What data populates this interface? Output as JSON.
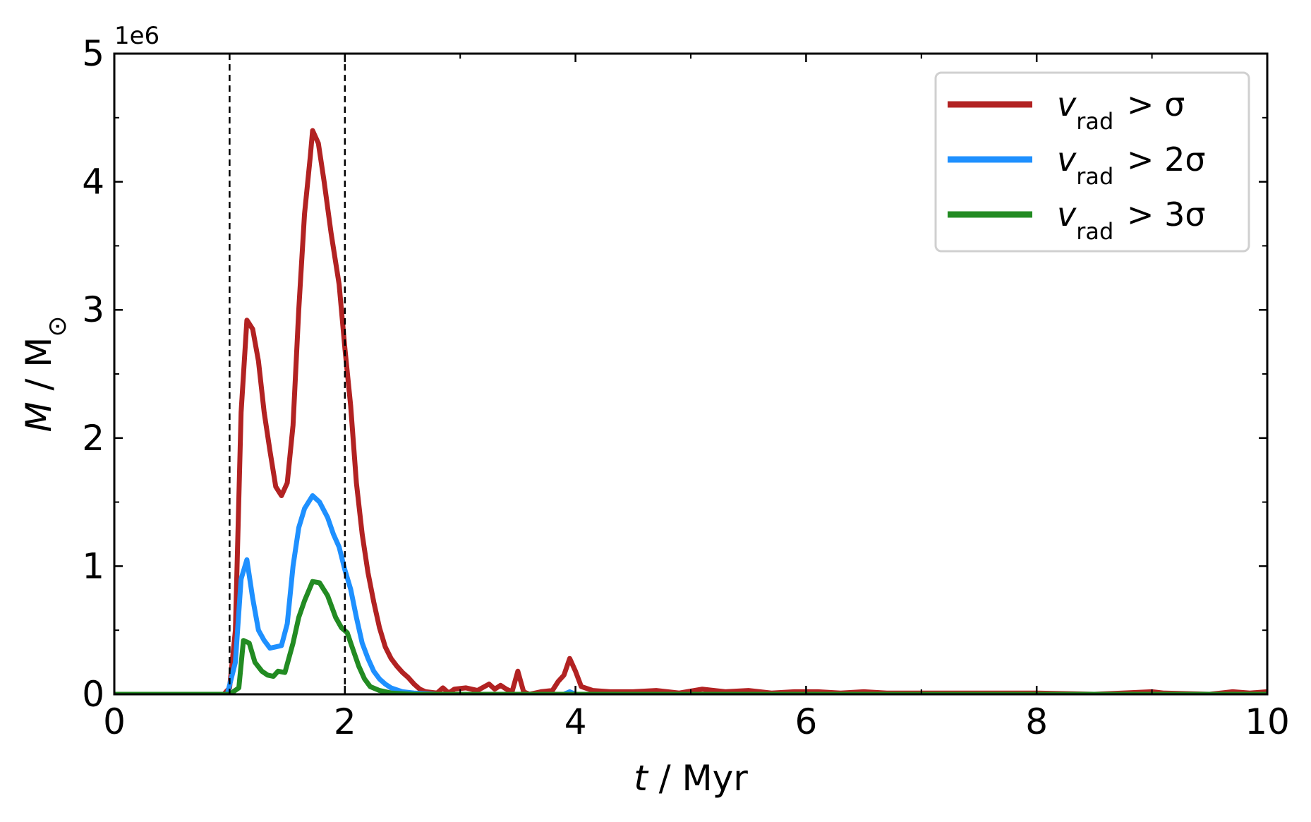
{
  "chart_data": {
    "type": "line",
    "xlabel": {
      "italic": "t",
      "rest": " / Myr"
    },
    "ylabel": {
      "italic": "M",
      "rest": " / M",
      "sub": "⊙"
    },
    "xlim": [
      0,
      10
    ],
    "ylim": [
      0,
      5
    ],
    "y_offset_text": "1e6",
    "x_ticks": [
      0,
      2,
      4,
      6,
      8,
      10
    ],
    "x_tick_labels": [
      "0",
      "2",
      "4",
      "6",
      "8",
      "10"
    ],
    "x_minor_ticks": [
      1,
      3,
      5,
      7,
      9
    ],
    "y_ticks": [
      0,
      1,
      2,
      3,
      4,
      5
    ],
    "y_tick_labels": [
      "0",
      "1",
      "2",
      "3",
      "4",
      "5"
    ],
    "y_minor_ticks": [
      0.5,
      1.5,
      2.5,
      3.5,
      4.5
    ],
    "vlines": [
      1.0,
      2.0
    ],
    "grid": false,
    "legend_position": "top-right",
    "series": [
      {
        "name": "v_rad > σ",
        "label_parts": {
          "v": "v",
          "sub": "rad",
          "rest": " > σ"
        },
        "color": "#b22222",
        "points": [
          [
            0,
            0
          ],
          [
            0.5,
            0
          ],
          [
            0.95,
            0
          ],
          [
            1.0,
            0.05
          ],
          [
            1.05,
            0.5
          ],
          [
            1.1,
            2.2
          ],
          [
            1.15,
            2.92
          ],
          [
            1.2,
            2.85
          ],
          [
            1.25,
            2.6
          ],
          [
            1.3,
            2.2
          ],
          [
            1.35,
            1.9
          ],
          [
            1.4,
            1.62
          ],
          [
            1.45,
            1.55
          ],
          [
            1.5,
            1.65
          ],
          [
            1.55,
            2.1
          ],
          [
            1.6,
            3.0
          ],
          [
            1.65,
            3.75
          ],
          [
            1.7,
            4.2
          ],
          [
            1.72,
            4.4
          ],
          [
            1.77,
            4.3
          ],
          [
            1.82,
            4.0
          ],
          [
            1.88,
            3.6
          ],
          [
            1.95,
            3.2
          ],
          [
            2.0,
            2.7
          ],
          [
            2.05,
            2.25
          ],
          [
            2.1,
            1.65
          ],
          [
            2.15,
            1.25
          ],
          [
            2.2,
            0.95
          ],
          [
            2.25,
            0.72
          ],
          [
            2.3,
            0.52
          ],
          [
            2.35,
            0.37
          ],
          [
            2.4,
            0.28
          ],
          [
            2.45,
            0.22
          ],
          [
            2.5,
            0.17
          ],
          [
            2.55,
            0.13
          ],
          [
            2.6,
            0.08
          ],
          [
            2.65,
            0.04
          ],
          [
            2.7,
            0.02
          ],
          [
            2.8,
            0.01
          ],
          [
            2.85,
            0.05
          ],
          [
            2.9,
            0.01
          ],
          [
            2.95,
            0.04
          ],
          [
            3.05,
            0.05
          ],
          [
            3.15,
            0.03
          ],
          [
            3.25,
            0.08
          ],
          [
            3.3,
            0.04
          ],
          [
            3.35,
            0.07
          ],
          [
            3.4,
            0.04
          ],
          [
            3.45,
            0.02
          ],
          [
            3.5,
            0.18
          ],
          [
            3.55,
            0.02
          ],
          [
            3.6,
            0.0
          ],
          [
            3.7,
            0.02
          ],
          [
            3.8,
            0.03
          ],
          [
            3.85,
            0.1
          ],
          [
            3.9,
            0.15
          ],
          [
            3.95,
            0.28
          ],
          [
            4.0,
            0.18
          ],
          [
            4.05,
            0.06
          ],
          [
            4.15,
            0.03
          ],
          [
            4.3,
            0.02
          ],
          [
            4.5,
            0.02
          ],
          [
            4.7,
            0.03
          ],
          [
            4.9,
            0.01
          ],
          [
            5.1,
            0.04
          ],
          [
            5.3,
            0.02
          ],
          [
            5.5,
            0.03
          ],
          [
            5.7,
            0.01
          ],
          [
            5.9,
            0.02
          ],
          [
            6.1,
            0.02
          ],
          [
            6.3,
            0.01
          ],
          [
            6.5,
            0.02
          ],
          [
            6.7,
            0.01
          ],
          [
            7.0,
            0.01
          ],
          [
            7.5,
            0.01
          ],
          [
            8.0,
            0.01
          ],
          [
            8.5,
            0.0
          ],
          [
            9.0,
            0.02
          ],
          [
            9.1,
            0.01
          ],
          [
            9.5,
            0.0
          ],
          [
            9.7,
            0.02
          ],
          [
            9.85,
            0.01
          ],
          [
            10.0,
            0.02
          ]
        ]
      },
      {
        "name": "v_rad > 2σ",
        "label_parts": {
          "v": "v",
          "sub": "rad",
          "rest": " > 2σ"
        },
        "color": "#1e90ff",
        "points": [
          [
            0,
            0
          ],
          [
            0.5,
            0
          ],
          [
            0.98,
            0
          ],
          [
            1.05,
            0.25
          ],
          [
            1.1,
            0.9
          ],
          [
            1.15,
            1.05
          ],
          [
            1.2,
            0.75
          ],
          [
            1.25,
            0.5
          ],
          [
            1.3,
            0.42
          ],
          [
            1.35,
            0.36
          ],
          [
            1.4,
            0.37
          ],
          [
            1.45,
            0.38
          ],
          [
            1.5,
            0.55
          ],
          [
            1.55,
            1.0
          ],
          [
            1.6,
            1.3
          ],
          [
            1.65,
            1.45
          ],
          [
            1.72,
            1.55
          ],
          [
            1.78,
            1.5
          ],
          [
            1.85,
            1.38
          ],
          [
            1.9,
            1.25
          ],
          [
            1.95,
            1.15
          ],
          [
            2.0,
            0.97
          ],
          [
            2.05,
            0.82
          ],
          [
            2.1,
            0.6
          ],
          [
            2.15,
            0.4
          ],
          [
            2.2,
            0.28
          ],
          [
            2.25,
            0.18
          ],
          [
            2.3,
            0.12
          ],
          [
            2.35,
            0.08
          ],
          [
            2.4,
            0.05
          ],
          [
            2.5,
            0.02
          ],
          [
            2.6,
            0.01
          ],
          [
            2.8,
            0
          ],
          [
            3.0,
            0
          ],
          [
            3.9,
            0
          ],
          [
            3.95,
            0.02
          ],
          [
            4.0,
            0
          ],
          [
            10,
            0
          ]
        ]
      },
      {
        "name": "v_rad > 3σ",
        "label_parts": {
          "v": "v",
          "sub": "rad",
          "rest": " > 3σ"
        },
        "color": "#228b22",
        "points": [
          [
            0,
            0
          ],
          [
            0.5,
            0
          ],
          [
            1.0,
            0
          ],
          [
            1.08,
            0.05
          ],
          [
            1.12,
            0.42
          ],
          [
            1.17,
            0.4
          ],
          [
            1.22,
            0.25
          ],
          [
            1.28,
            0.18
          ],
          [
            1.33,
            0.15
          ],
          [
            1.38,
            0.14
          ],
          [
            1.42,
            0.18
          ],
          [
            1.48,
            0.17
          ],
          [
            1.55,
            0.4
          ],
          [
            1.6,
            0.6
          ],
          [
            1.65,
            0.73
          ],
          [
            1.72,
            0.88
          ],
          [
            1.78,
            0.87
          ],
          [
            1.85,
            0.77
          ],
          [
            1.92,
            0.6
          ],
          [
            1.97,
            0.52
          ],
          [
            2.02,
            0.48
          ],
          [
            2.07,
            0.35
          ],
          [
            2.12,
            0.22
          ],
          [
            2.17,
            0.12
          ],
          [
            2.22,
            0.06
          ],
          [
            2.3,
            0.03
          ],
          [
            2.4,
            0.01
          ],
          [
            2.6,
            0
          ],
          [
            10,
            0
          ]
        ]
      }
    ]
  }
}
